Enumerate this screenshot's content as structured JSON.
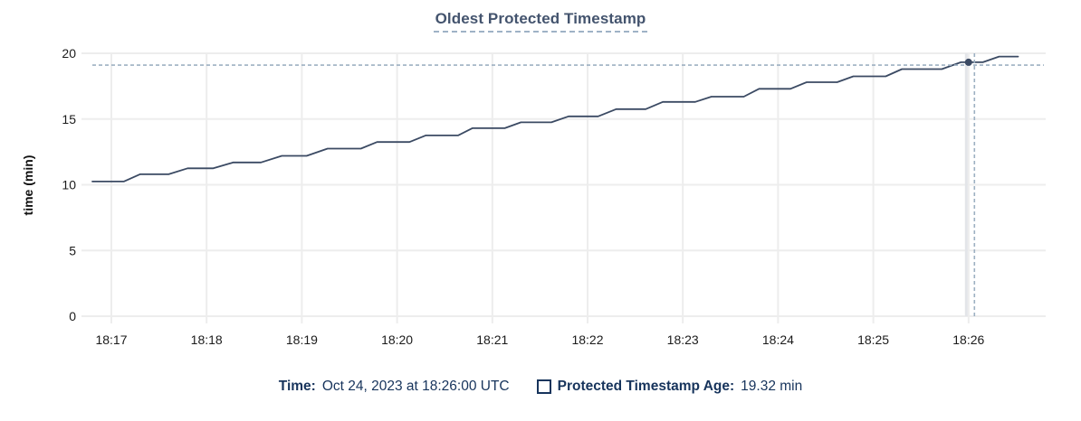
{
  "chart": {
    "title": "Oldest Protected Timestamp",
    "y_axis_title": "time (min)",
    "colors": {
      "title": "#44546e",
      "title_underline": "#9fb2c6",
      "line": "#3b4a63",
      "dot": "#3b4a63",
      "grid": "#ededed",
      "hover_band": "#e3e5e9",
      "crosshair_dash": "#9db0c2",
      "tick_text": "#1b1b1b",
      "axis_title_text": "#111111",
      "legend_text": "#17345c"
    }
  },
  "chart_data": {
    "type": "line",
    "title": "Oldest Protected Timestamp",
    "xlabel": "",
    "ylabel": "time (min)",
    "ylim": [
      0,
      20
    ],
    "y_ticks": [
      0,
      5,
      10,
      15,
      20
    ],
    "xlim_minutes_after_1800": [
      16.8,
      26.81
    ],
    "x_ticks": [
      {
        "minutes": 17,
        "label": "18:17"
      },
      {
        "minutes": 18,
        "label": "18:18"
      },
      {
        "minutes": 19,
        "label": "18:19"
      },
      {
        "minutes": 20,
        "label": "18:20"
      },
      {
        "minutes": 21,
        "label": "18:21"
      },
      {
        "minutes": 22,
        "label": "18:22"
      },
      {
        "minutes": 23,
        "label": "18:23"
      },
      {
        "minutes": 24,
        "label": "18:24"
      },
      {
        "minutes": 25,
        "label": "18:25"
      },
      {
        "minutes": 26,
        "label": "18:26"
      }
    ],
    "grid": true,
    "legend_position": "bottom",
    "series": [
      {
        "name": "Protected Timestamp Age",
        "unit": "min",
        "points": [
          [
            16.8,
            10.25
          ],
          [
            17.13,
            10.25
          ],
          [
            17.3,
            10.8
          ],
          [
            17.6,
            10.8
          ],
          [
            17.8,
            11.25
          ],
          [
            18.07,
            11.25
          ],
          [
            18.28,
            11.7
          ],
          [
            18.57,
            11.7
          ],
          [
            18.79,
            12.2
          ],
          [
            19.05,
            12.2
          ],
          [
            19.27,
            12.75
          ],
          [
            19.62,
            12.75
          ],
          [
            19.79,
            13.25
          ],
          [
            20.13,
            13.25
          ],
          [
            20.3,
            13.75
          ],
          [
            20.64,
            13.75
          ],
          [
            20.79,
            14.3
          ],
          [
            21.13,
            14.3
          ],
          [
            21.3,
            14.75
          ],
          [
            21.62,
            14.75
          ],
          [
            21.8,
            15.2
          ],
          [
            22.11,
            15.2
          ],
          [
            22.3,
            15.75
          ],
          [
            22.61,
            15.75
          ],
          [
            22.79,
            16.3
          ],
          [
            23.13,
            16.3
          ],
          [
            23.3,
            16.7
          ],
          [
            23.64,
            16.7
          ],
          [
            23.8,
            17.3
          ],
          [
            24.13,
            17.3
          ],
          [
            24.3,
            17.8
          ],
          [
            24.62,
            17.8
          ],
          [
            24.79,
            18.25
          ],
          [
            25.13,
            18.25
          ],
          [
            25.3,
            18.8
          ],
          [
            25.72,
            18.8
          ],
          [
            25.92,
            19.32
          ],
          [
            26.15,
            19.32
          ],
          [
            26.32,
            19.75
          ],
          [
            26.52,
            19.75
          ]
        ]
      }
    ],
    "hover": {
      "time_minutes": 26.0,
      "time_label": "Oct 24, 2023 at 18:26:00 UTC",
      "value": 19.32,
      "crosshair_h_value": 19.1
    }
  },
  "footer": {
    "time_label": "Time:",
    "time_value": "Oct 24, 2023 at 18:26:00 UTC",
    "series_label": "Protected Timestamp Age:",
    "series_value": "19.32 min"
  }
}
